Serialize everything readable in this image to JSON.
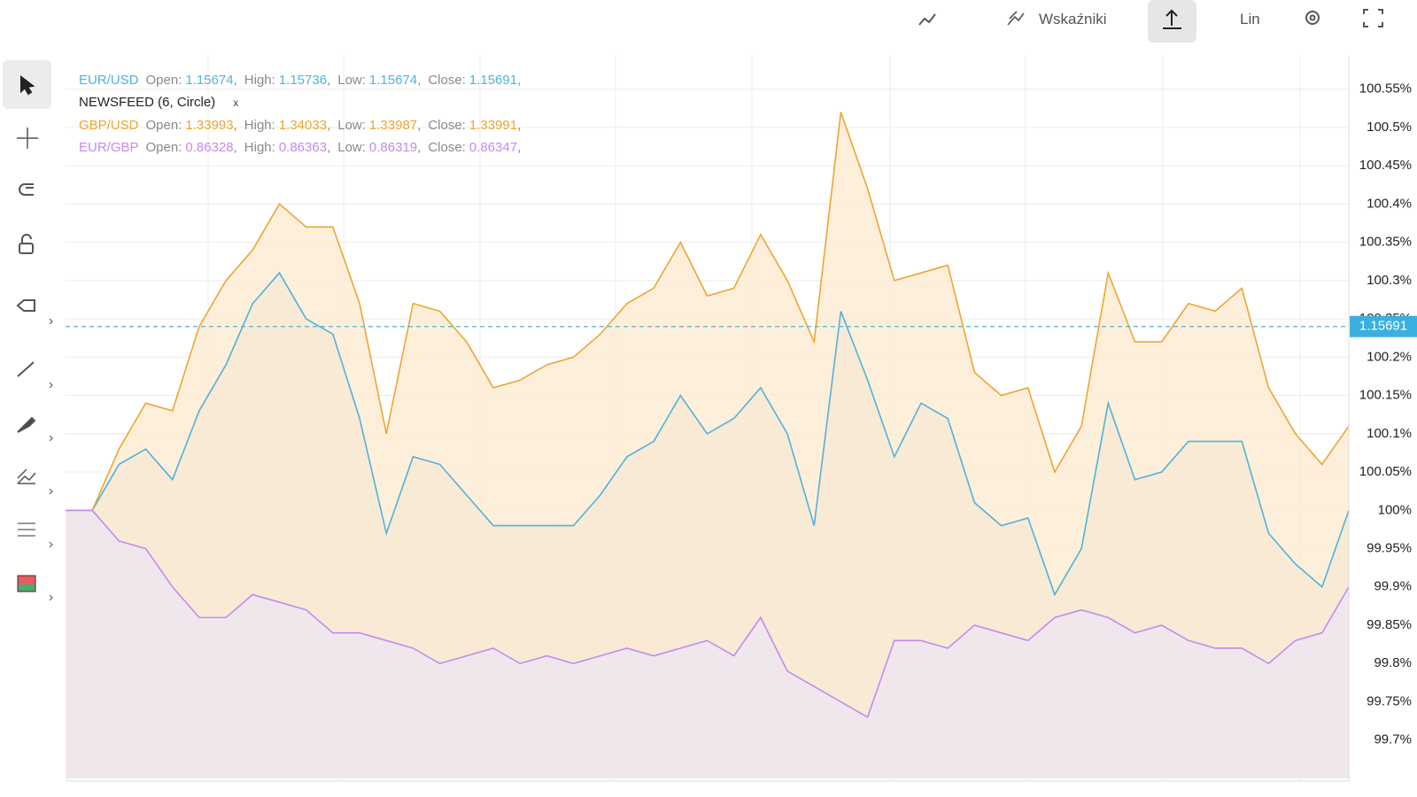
{
  "toolbar": {
    "indicators": "Wskaźniki",
    "scale": "Lin"
  },
  "newsfeed": {
    "text": "NEWSFEED (6, Circle)",
    "close": "x"
  },
  "chart_data": {
    "type": "line",
    "separator": ",",
    "ylim": [
      99.65,
      100.59
    ],
    "yticks": [
      {
        "value": 99.7,
        "label": "99.7%"
      },
      {
        "value": 99.75,
        "label": "99.75%"
      },
      {
        "value": 99.8,
        "label": "99.8%"
      },
      {
        "value": 99.85,
        "label": "99.85%"
      },
      {
        "value": 99.9,
        "label": "99.9%"
      },
      {
        "value": 99.95,
        "label": "99.95%"
      },
      {
        "value": 100,
        "label": "100%"
      },
      {
        "value": 100.05,
        "label": "100.05%"
      },
      {
        "value": 100.1,
        "label": "100.1%"
      },
      {
        "value": 100.15,
        "label": "100.15%"
      },
      {
        "value": 100.2,
        "label": "100.2%"
      },
      {
        "value": 100.25,
        "label": "100.25%"
      },
      {
        "value": 100.3,
        "label": "100.3%"
      },
      {
        "value": 100.35,
        "label": "100.35%"
      },
      {
        "value": 100.4,
        "label": "100.4%"
      },
      {
        "value": 100.45,
        "label": "100.45%"
      },
      {
        "value": 100.5,
        "label": "100.5%"
      },
      {
        "value": 100.55,
        "label": "100.55%"
      }
    ],
    "grid": true,
    "price_line": {
      "value": 100.24,
      "label": "1.15691"
    },
    "series": [
      {
        "name": "EUR/USD",
        "color": "#4fb3dc",
        "fill": "#dfe6df",
        "fields": [
          {
            "label": "Open:",
            "value": 1.15674
          },
          {
            "label": "High:",
            "value": 1.15736
          },
          {
            "label": "Low:",
            "value": 1.15674
          },
          {
            "label": "Close:",
            "value": 1.15691
          }
        ],
        "values": [
          100.0,
          100.0,
          100.06,
          100.08,
          100.04,
          100.13,
          100.19,
          100.27,
          100.31,
          100.25,
          100.23,
          100.12,
          99.97,
          100.07,
          100.06,
          100.02,
          99.98,
          99.98,
          99.98,
          99.98,
          100.02,
          100.07,
          100.09,
          100.15,
          100.1,
          100.12,
          100.16,
          100.1,
          99.98,
          100.26,
          100.17,
          100.07,
          100.14,
          100.12,
          100.01,
          99.98,
          99.99,
          99.89,
          99.95,
          100.14,
          100.04,
          100.05,
          100.09,
          100.09,
          100.09,
          99.97,
          99.93,
          99.9,
          100.0
        ]
      },
      {
        "name": "GBP/USD",
        "color": "#efa531",
        "fill": "#fde9cf",
        "fields": [
          {
            "label": "Open:",
            "value": 1.33993
          },
          {
            "label": "High:",
            "value": 1.34033
          },
          {
            "label": "Low:",
            "value": 1.33987
          },
          {
            "label": "Close:",
            "value": 1.33991
          }
        ],
        "values": [
          100.0,
          100.0,
          100.08,
          100.14,
          100.13,
          100.24,
          100.3,
          100.34,
          100.4,
          100.37,
          100.37,
          100.27,
          100.1,
          100.27,
          100.26,
          100.22,
          100.16,
          100.17,
          100.19,
          100.2,
          100.23,
          100.27,
          100.29,
          100.35,
          100.28,
          100.29,
          100.36,
          100.3,
          100.22,
          100.52,
          100.42,
          100.3,
          100.31,
          100.32,
          100.18,
          100.15,
          100.16,
          100.05,
          100.11,
          100.31,
          100.22,
          100.22,
          100.27,
          100.26,
          100.29,
          100.16,
          100.1,
          100.06,
          100.11
        ]
      },
      {
        "name": "EUR/GBP",
        "color": "#c48af0",
        "fill": "#ede6f3",
        "fields": [
          {
            "label": "Open:",
            "value": 0.86328
          },
          {
            "label": "High:",
            "value": 0.86363
          },
          {
            "label": "Low:",
            "value": 0.86319
          },
          {
            "label": "Close:",
            "value": 0.86347
          }
        ],
        "values": [
          100.0,
          100.0,
          99.96,
          99.95,
          99.9,
          99.86,
          99.86,
          99.89,
          99.88,
          99.87,
          99.84,
          99.84,
          99.83,
          99.82,
          99.8,
          99.81,
          99.82,
          99.8,
          99.81,
          99.8,
          99.81,
          99.82,
          99.81,
          99.82,
          99.83,
          99.81,
          99.86,
          99.79,
          99.77,
          99.75,
          99.73,
          99.83,
          99.83,
          99.82,
          99.85,
          99.84,
          99.83,
          99.86,
          99.87,
          99.86,
          99.84,
          99.85,
          99.83,
          99.82,
          99.82,
          99.8,
          99.83,
          99.84,
          99.9
        ]
      }
    ]
  }
}
